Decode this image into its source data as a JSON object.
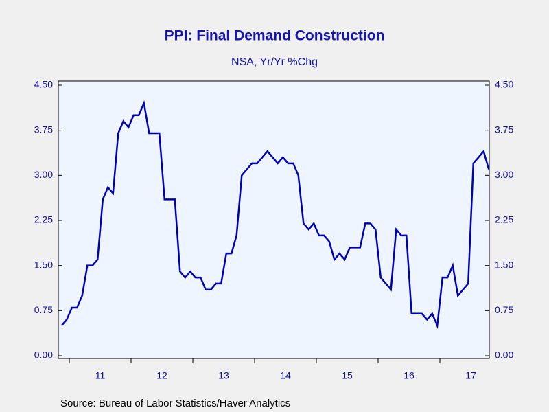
{
  "chart_data": {
    "type": "line",
    "title": "PPI: Final Demand Construction",
    "subtitle": "NSA, Yr/Yr %Chg",
    "source": "Source:  Bureau of Labor Statistics/Haver Analytics",
    "xlim": [
      10.822,
      17.8
    ],
    "xticks": [
      11,
      12,
      13,
      14,
      15,
      16,
      17
    ],
    "xtick_labels": [
      {
        "value": 11.5,
        "label": "11"
      },
      {
        "value": 12.5,
        "label": "12"
      },
      {
        "value": 13.5,
        "label": "13"
      },
      {
        "value": 14.5,
        "label": "14"
      },
      {
        "value": 15.5,
        "label": "15"
      },
      {
        "value": 16.5,
        "label": "16"
      },
      {
        "value": 17.5,
        "label": "17"
      }
    ],
    "ylim": [
      0,
      4.5
    ],
    "yticks": [
      {
        "value": 0,
        "label": "0.00"
      },
      {
        "value": 0.75,
        "label": "0.75"
      },
      {
        "value": 1.5,
        "label": "1.50"
      },
      {
        "value": 2.25,
        "label": "2.25"
      },
      {
        "value": 3,
        "label": "3.00"
      },
      {
        "value": 3.75,
        "label": "3.75"
      },
      {
        "value": 4.5,
        "label": "4.50"
      }
    ],
    "y2lim": [
      0,
      4.5
    ],
    "y2ticks": [
      {
        "value": 0,
        "label": "0.00"
      },
      {
        "value": 0.75,
        "label": "0.75"
      },
      {
        "value": 1.5,
        "label": "1.50"
      },
      {
        "value": 2.25,
        "label": "2.25"
      },
      {
        "value": 3,
        "label": "3.00"
      },
      {
        "value": 3.75,
        "label": "3.75"
      },
      {
        "value": 4.5,
        "label": "4.50"
      }
    ],
    "series": [
      {
        "color": "#0000b4",
        "x": [
          10.875,
          10.958,
          11.042,
          11.125,
          11.208,
          11.292,
          11.375,
          11.458,
          11.542,
          11.625,
          11.708,
          11.792,
          11.875,
          11.958,
          12.042,
          12.125,
          12.208,
          12.292,
          12.375,
          12.458,
          12.542,
          12.625,
          12.708,
          12.792,
          12.875,
          12.958,
          13.042,
          13.125,
          13.208,
          13.292,
          13.375,
          13.458,
          13.542,
          13.625,
          13.708,
          13.792,
          13.875,
          13.958,
          14.042,
          14.125,
          14.208,
          14.292,
          14.375,
          14.458,
          14.542,
          14.625,
          14.708,
          14.792,
          14.875,
          14.958,
          15.042,
          15.125,
          15.208,
          15.292,
          15.375,
          15.458,
          15.542,
          15.625,
          15.708,
          15.792,
          15.875,
          15.958,
          16.042,
          16.125,
          16.208,
          16.292,
          16.375,
          16.458,
          16.542,
          16.625,
          16.708,
          16.792,
          16.875,
          16.958,
          17.042,
          17.125,
          17.208,
          17.292,
          17.375,
          17.458,
          17.542,
          17.625,
          17.708,
          17.792
        ],
        "values": [
          0.5,
          0.6,
          0.8,
          0.8,
          1.0,
          1.5,
          1.5,
          1.6,
          2.6,
          2.8,
          2.7,
          3.7,
          3.9,
          3.8,
          4.0,
          4.0,
          4.2,
          3.7,
          3.7,
          3.7,
          2.6,
          2.6,
          2.6,
          1.4,
          1.3,
          1.4,
          1.3,
          1.3,
          1.1,
          1.1,
          1.2,
          1.2,
          1.7,
          1.7,
          2.0,
          3.0,
          3.1,
          3.2,
          3.2,
          3.3,
          3.4,
          3.3,
          3.2,
          3.3,
          3.2,
          3.2,
          3.0,
          2.2,
          2.1,
          2.2,
          2.0,
          2.0,
          1.9,
          1.6,
          1.7,
          1.6,
          1.8,
          1.8,
          1.8,
          2.2,
          2.2,
          2.1,
          1.3,
          1.2,
          1.1,
          2.1,
          2.0,
          2.0,
          0.7,
          0.7,
          0.7,
          0.6,
          0.7,
          0.5,
          1.3,
          1.3,
          1.5,
          1.0,
          1.1,
          1.2,
          3.2,
          3.3,
          3.4,
          3.1
        ]
      }
    ]
  }
}
